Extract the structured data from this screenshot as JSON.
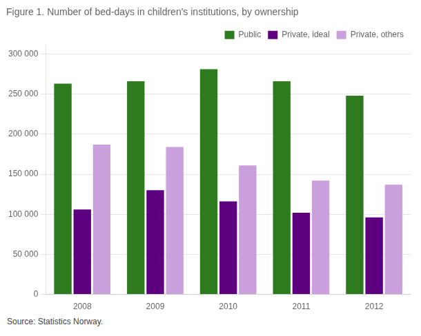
{
  "chart_data": {
    "type": "bar",
    "title": "Figure 1. Number of bed-days in children's institutions, by ownership",
    "annotations": [
      "Source: Statistics Norway."
    ],
    "categories": [
      "2008",
      "2009",
      "2010",
      "2011",
      "2012"
    ],
    "series": [
      {
        "name": "Public",
        "color": "#2d7a1f",
        "values": [
          263000,
          266000,
          281000,
          266000,
          248000
        ]
      },
      {
        "name": "Private, ideal",
        "color": "#5c0080",
        "values": [
          106000,
          130000,
          116000,
          102000,
          96000
        ]
      },
      {
        "name": "Private, others",
        "color": "#c9a0dc",
        "values": [
          187000,
          184000,
          161000,
          142000,
          137000
        ]
      }
    ],
    "ylim": [
      0,
      310000
    ],
    "yticks": [
      0,
      {
        "value": 50000,
        "label": "50 000"
      },
      {
        "value": 100000,
        "label": "100 000"
      },
      {
        "value": 150000,
        "label": "150 000"
      },
      {
        "value": 200000,
        "label": "200 000"
      },
      {
        "value": 250000,
        "label": "250 000"
      },
      {
        "value": 300000,
        "label": "300 000"
      }
    ],
    "grid": true,
    "legend": "upper right"
  }
}
